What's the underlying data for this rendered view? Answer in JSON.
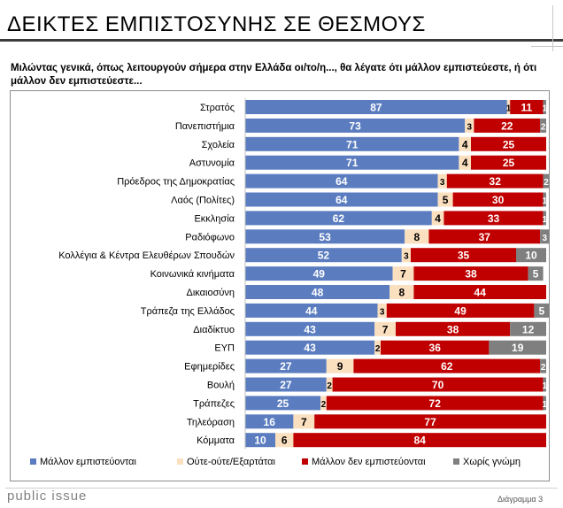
{
  "page": {
    "title": "ΔΕΙΚΤΕΣ ΕΜΠΙΣΤΟΣΥΝΗΣ ΣΕ ΘΕΣΜΟΥΣ",
    "subtitle": "Μιλώντας γενικά, όπως λειτουργούν σήμερα στην Ελλάδα οι/το/η..., θα λέγατε ότι μάλλον εμπιστεύεστε, ή ότι μάλλον δεν εμπιστεύεστε...",
    "brand": "public issue",
    "page_label": "Διάγραμμα 3"
  },
  "chart_data": {
    "type": "bar",
    "orientation": "horizontal",
    "stacked": true,
    "xlim": [
      0,
      100
    ],
    "categories": [
      "Στρατός",
      "Πανεπιστήμια",
      "Σχολεία",
      "Αστυνομία",
      "Πρόεδρος της Δημοκρατίας",
      "Λαός (Πολίτες)",
      "Εκκλησία",
      "Ραδιόφωνο",
      "Κολλέγια & Κέντρα Ελευθέρων Σπουδών",
      "Κοινωνικά κινήματα",
      "Δικαιοσύνη",
      "Τράπεζα της Ελλάδος",
      "Διαδίκτυο",
      "ΕΥΠ",
      "Εφημερίδες",
      "Βουλή",
      "Τράπεζες",
      "Τηλεόραση",
      "Κόμματα"
    ],
    "series": [
      {
        "name": "Μάλλον εμπιστεύονται",
        "color": "#5b7dc0",
        "values": [
          87,
          73,
          71,
          71,
          64,
          64,
          62,
          53,
          52,
          49,
          48,
          44,
          43,
          43,
          27,
          27,
          25,
          16,
          10
        ]
      },
      {
        "name": "Ούτε-ούτε/Εξαρτάται",
        "color": "#fbe0c0",
        "values": [
          1,
          3,
          4,
          4,
          3,
          5,
          4,
          8,
          3,
          7,
          8,
          3,
          7,
          2,
          9,
          2,
          2,
          7,
          6
        ]
      },
      {
        "name": "Μάλλον δεν εμπιστεύονται",
        "color": "#c00000",
        "values": [
          11,
          22,
          25,
          25,
          32,
          30,
          33,
          37,
          35,
          38,
          44,
          49,
          38,
          36,
          62,
          70,
          72,
          77,
          84
        ]
      },
      {
        "name": "Χωρίς γνώμη",
        "color": "#7f7f7f",
        "values": [
          1,
          2,
          0,
          0,
          2,
          1,
          1,
          3,
          10,
          5,
          0,
          5,
          12,
          19,
          2,
          1,
          1,
          0,
          0
        ]
      }
    ],
    "legend_position": "bottom",
    "grid": false
  }
}
